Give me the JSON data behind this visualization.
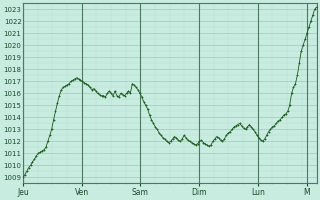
{
  "background_color": "#c8ece0",
  "plot_bg_color": "#c8ece0",
  "grid_color_major": "#a0c8b8",
  "grid_color_minor": "#b8ddd0",
  "line_color": "#1a5c1a",
  "ylim": [
    1008.5,
    1023.5
  ],
  "yticks": [
    1009,
    1010,
    1011,
    1012,
    1013,
    1014,
    1015,
    1016,
    1017,
    1018,
    1019,
    1020,
    1021,
    1022,
    1023
  ],
  "xlabel_days": [
    "Jeu",
    "Ven",
    "Sam",
    "Dim",
    "Lun",
    "M"
  ],
  "x_day_positions": [
    0,
    24,
    48,
    72,
    96,
    116
  ],
  "xlim": [
    0,
    120
  ],
  "base_pressure": 1009.0,
  "y_values": [
    1009.0,
    1009.2,
    1009.5,
    1009.8,
    1010.0,
    1010.3,
    1010.5,
    1010.8,
    1011.0,
    1011.1,
    1011.2,
    1011.3,
    1011.5,
    1012.0,
    1012.5,
    1013.0,
    1013.8,
    1014.5,
    1015.2,
    1015.8,
    1016.3,
    1016.5,
    1016.6,
    1016.7,
    1016.8,
    1017.0,
    1017.1,
    1017.2,
    1017.3,
    1017.2,
    1017.1,
    1017.0,
    1016.9,
    1016.8,
    1016.7,
    1016.5,
    1016.3,
    1016.4,
    1016.2,
    1016.0,
    1015.9,
    1015.8,
    1015.8,
    1015.7,
    1016.0,
    1016.2,
    1016.0,
    1015.8,
    1016.2,
    1015.8,
    1015.7,
    1016.0,
    1015.9,
    1015.8,
    1016.0,
    1016.2,
    1016.0,
    1016.8,
    1016.7,
    1016.5,
    1016.3,
    1016.0,
    1015.7,
    1015.3,
    1015.0,
    1014.7,
    1014.2,
    1013.8,
    1013.5,
    1013.2,
    1013.0,
    1012.7,
    1012.5,
    1012.3,
    1012.2,
    1012.0,
    1011.9,
    1012.0,
    1012.2,
    1012.4,
    1012.3,
    1012.1,
    1012.0,
    1012.2,
    1012.5,
    1012.3,
    1012.1,
    1012.0,
    1011.9,
    1011.8,
    1011.7,
    1011.8,
    1012.0,
    1012.1,
    1011.9,
    1011.8,
    1011.7,
    1011.6,
    1011.7,
    1012.0,
    1012.2,
    1012.4,
    1012.3,
    1012.1,
    1012.0,
    1012.2,
    1012.5,
    1012.7,
    1012.8,
    1013.0,
    1013.2,
    1013.3,
    1013.4,
    1013.5,
    1013.3,
    1013.1,
    1013.0,
    1013.2,
    1013.4,
    1013.2,
    1013.0,
    1012.8,
    1012.5,
    1012.3,
    1012.1,
    1012.0,
    1012.2,
    1012.5,
    1012.8,
    1013.0,
    1013.2,
    1013.3,
    1013.5,
    1013.7,
    1013.8,
    1014.0,
    1014.2,
    1014.3,
    1014.5,
    1015.0,
    1016.0,
    1016.5,
    1016.8,
    1017.5,
    1018.5,
    1019.5,
    1020.0,
    1020.5,
    1021.0,
    1021.5,
    1022.0,
    1022.5,
    1023.0,
    1023.2
  ]
}
